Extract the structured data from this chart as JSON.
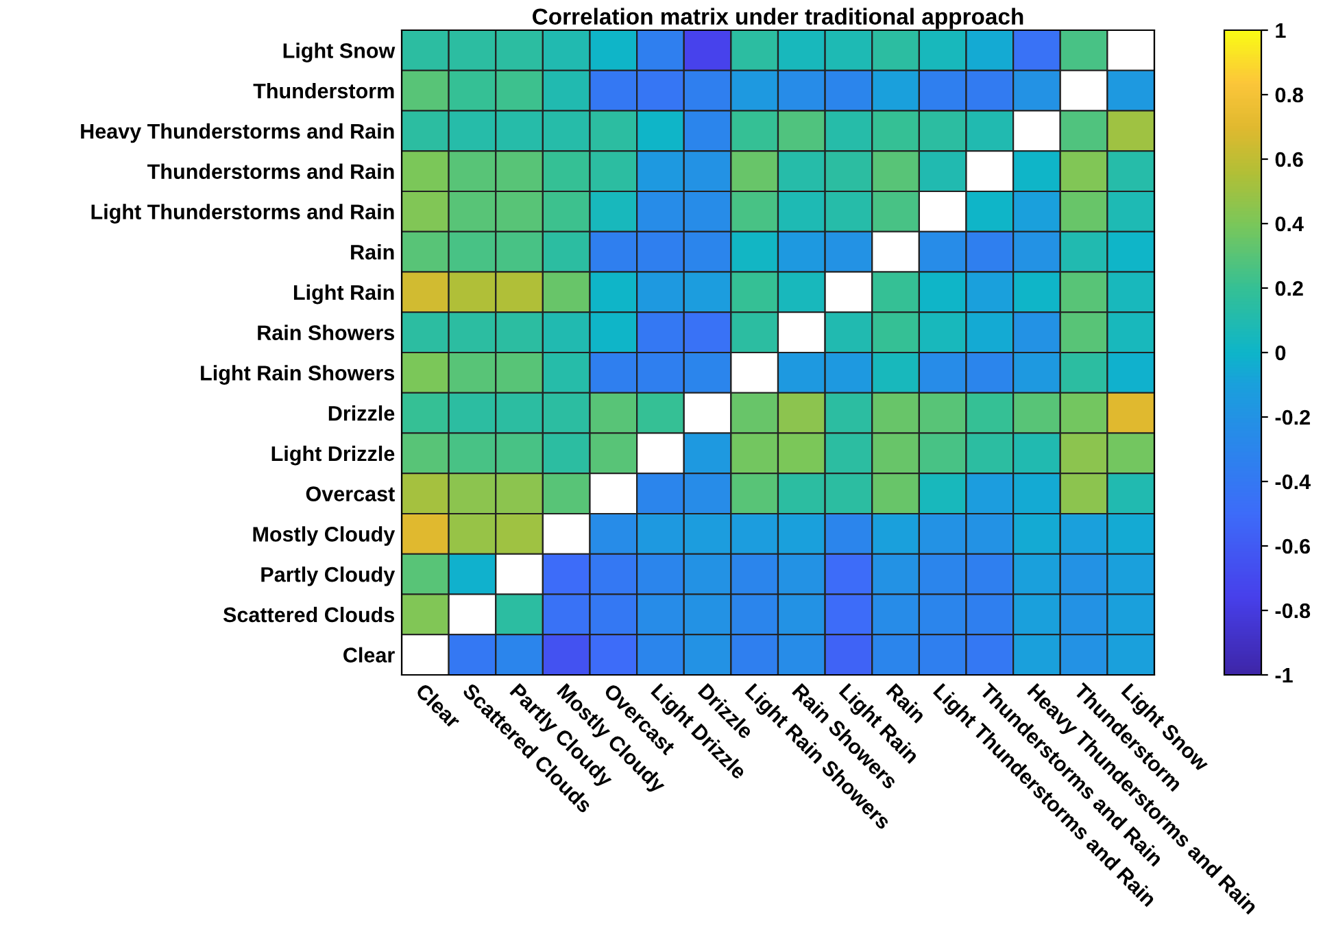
{
  "chart_data": {
    "type": "heatmap",
    "title": "Correlation matrix under traditional approach",
    "categories": [
      "Clear",
      "Scattered Clouds",
      "Partly Cloudy",
      "Mostly Cloudy",
      "Overcast",
      "Light Drizzle",
      "Drizzle",
      "Light Rain Showers",
      "Rain Showers",
      "Light Rain",
      "Rain",
      "Light Thunderstorms and Rain",
      "Thunderstorms and Rain",
      "Heavy Thunderstorms and Rain",
      "Thunderstorm",
      "Light Snow"
    ],
    "y_categories": [
      "Light Snow",
      "Thunderstorm",
      "Heavy Thunderstorms and Rain",
      "Thunderstorms and Rain",
      "Light Thunderstorms and Rain",
      "Rain",
      "Light Rain",
      "Rain Showers",
      "Light Rain Showers",
      "Drizzle",
      "Light Drizzle",
      "Overcast",
      "Mostly Cloudy",
      "Partly Cloudy",
      "Scattered Clouds",
      "Clear"
    ],
    "cells": [
      [
        0.15,
        0.15,
        0.15,
        0.1,
        0.0,
        -0.35,
        -0.75,
        0.15,
        0.05,
        0.08,
        0.15,
        0.05,
        -0.05,
        -0.45,
        0.25,
        null
      ],
      [
        0.3,
        0.2,
        0.22,
        0.1,
        -0.4,
        -0.42,
        -0.35,
        -0.15,
        -0.25,
        -0.3,
        -0.1,
        -0.35,
        -0.38,
        -0.2,
        null,
        -0.15
      ],
      [
        0.15,
        0.12,
        0.12,
        0.12,
        0.15,
        0.0,
        -0.3,
        0.2,
        0.28,
        0.12,
        0.2,
        0.15,
        0.1,
        null,
        0.28,
        0.5
      ],
      [
        0.4,
        0.3,
        0.3,
        0.2,
        0.15,
        -0.15,
        -0.2,
        0.35,
        0.12,
        0.15,
        0.3,
        0.1,
        null,
        0.0,
        0.42,
        0.12
      ],
      [
        0.42,
        0.3,
        0.3,
        0.22,
        0.05,
        -0.25,
        -0.25,
        0.25,
        0.08,
        0.12,
        0.25,
        null,
        0.0,
        -0.1,
        0.35,
        0.08
      ],
      [
        0.3,
        0.25,
        0.25,
        0.15,
        -0.35,
        -0.35,
        -0.3,
        0.02,
        -0.15,
        -0.2,
        null,
        -0.25,
        -0.35,
        -0.2,
        0.1,
        0.0
      ],
      [
        0.65,
        0.55,
        0.55,
        0.35,
        0.0,
        -0.15,
        -0.12,
        0.2,
        0.05,
        null,
        0.2,
        0.0,
        -0.1,
        0.0,
        0.3,
        0.05
      ],
      [
        0.15,
        0.15,
        0.15,
        0.1,
        0.0,
        -0.4,
        -0.45,
        0.15,
        null,
        0.1,
        0.2,
        0.05,
        -0.05,
        -0.2,
        0.3,
        0.05
      ],
      [
        0.4,
        0.3,
        0.3,
        0.12,
        -0.35,
        -0.35,
        -0.3,
        null,
        -0.15,
        -0.15,
        0.05,
        -0.25,
        -0.3,
        -0.15,
        0.15,
        -0.02
      ],
      [
        0.2,
        0.15,
        0.15,
        0.15,
        0.3,
        0.2,
        null,
        0.35,
        0.45,
        0.15,
        0.35,
        0.3,
        0.2,
        0.3,
        0.38,
        0.7
      ],
      [
        0.3,
        0.25,
        0.25,
        0.15,
        0.3,
        null,
        -0.15,
        0.38,
        0.4,
        0.15,
        0.35,
        0.25,
        0.15,
        0.1,
        0.45,
        0.38
      ],
      [
        0.52,
        0.45,
        0.45,
        0.3,
        null,
        -0.3,
        -0.25,
        0.3,
        0.15,
        0.15,
        0.35,
        0.05,
        -0.12,
        -0.05,
        0.45,
        0.1
      ],
      [
        0.7,
        0.48,
        0.5,
        null,
        -0.25,
        -0.15,
        -0.12,
        -0.12,
        -0.1,
        -0.3,
        -0.1,
        -0.2,
        -0.2,
        -0.05,
        -0.1,
        -0.05
      ],
      [
        0.3,
        -0.02,
        null,
        -0.5,
        -0.4,
        -0.3,
        -0.2,
        -0.3,
        -0.2,
        -0.5,
        -0.2,
        -0.3,
        -0.35,
        -0.1,
        -0.2,
        -0.1
      ],
      [
        0.42,
        null,
        0.15,
        -0.45,
        -0.4,
        -0.25,
        -0.2,
        -0.3,
        -0.2,
        -0.5,
        -0.25,
        -0.3,
        -0.35,
        -0.1,
        -0.2,
        -0.1
      ],
      [
        null,
        -0.4,
        -0.3,
        -0.65,
        -0.5,
        -0.3,
        -0.2,
        -0.35,
        -0.25,
        -0.55,
        -0.3,
        -0.35,
        -0.4,
        -0.1,
        -0.2,
        -0.1
      ]
    ],
    "clim": [
      -1,
      1
    ],
    "cticks": [
      -1,
      -0.8,
      -0.6,
      -0.4,
      -0.2,
      0,
      0.2,
      0.4,
      0.6,
      0.8,
      1
    ]
  }
}
